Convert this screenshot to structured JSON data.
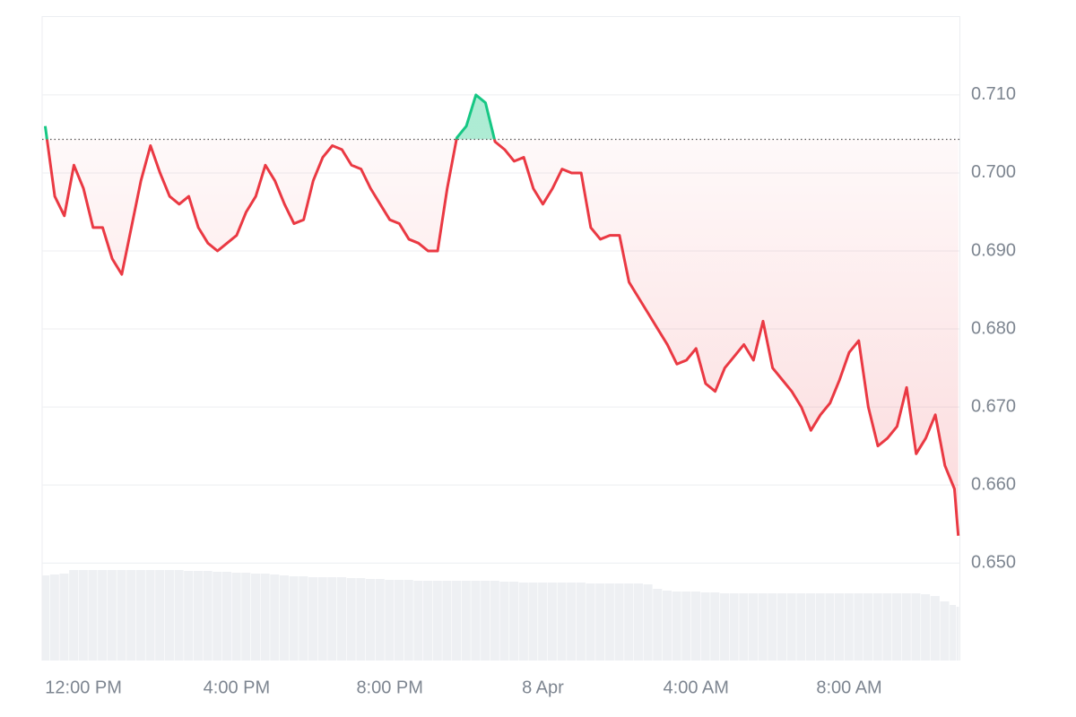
{
  "chart_data": {
    "type": "line",
    "x": [
      -1,
      -0.75,
      -0.5,
      -0.25,
      0,
      0.25,
      0.5,
      0.75,
      1,
      1.25,
      1.5,
      1.75,
      2,
      2.25,
      2.5,
      2.75,
      3,
      3.25,
      3.5,
      3.75,
      4,
      4.25,
      4.5,
      4.75,
      5,
      5.25,
      5.5,
      5.75,
      6,
      6.25,
      6.5,
      6.75,
      7,
      7.25,
      7.5,
      7.75,
      8,
      8.25,
      8.5,
      8.75,
      9,
      9.25,
      9.5,
      9.75,
      10,
      10.25,
      10.5,
      10.75,
      11,
      11.25,
      11.5,
      11.75,
      12,
      12.25,
      12.5,
      12.75,
      13,
      13.25,
      13.5,
      13.75,
      14,
      14.25,
      14.5,
      14.75,
      15,
      15.25,
      15.5,
      15.75,
      16,
      16.25,
      16.5,
      16.75,
      17,
      17.25,
      17.5,
      17.75,
      18,
      18.25,
      18.5,
      18.75,
      19,
      19.25,
      19.5,
      19.75,
      20,
      20.25,
      20.5,
      20.75,
      21,
      21.25,
      21.5,
      21.75,
      22,
      22.25,
      22.5,
      22.75,
      22.85
    ],
    "values": [
      0.706,
      0.697,
      0.6945,
      0.701,
      0.698,
      0.693,
      0.693,
      0.689,
      0.687,
      0.693,
      0.699,
      0.7035,
      0.7,
      0.697,
      0.696,
      0.697,
      0.693,
      0.691,
      0.69,
      0.691,
      0.692,
      0.695,
      0.697,
      0.701,
      0.699,
      0.696,
      0.6935,
      0.694,
      0.699,
      0.702,
      0.7035,
      0.703,
      0.701,
      0.7005,
      0.698,
      0.696,
      0.694,
      0.6935,
      0.6915,
      0.691,
      0.69,
      0.69,
      0.698,
      0.7045,
      0.706,
      0.71,
      0.709,
      0.704,
      0.703,
      0.7015,
      0.702,
      0.698,
      0.696,
      0.698,
      0.7005,
      0.7,
      0.7,
      0.693,
      0.6915,
      0.692,
      0.692,
      0.686,
      0.684,
      0.682,
      0.68,
      0.678,
      0.6755,
      0.676,
      0.6775,
      0.673,
      0.672,
      0.675,
      0.6765,
      0.678,
      0.676,
      0.681,
      0.675,
      0.6735,
      0.672,
      0.67,
      0.667,
      0.669,
      0.6705,
      0.6735,
      0.677,
      0.6785,
      0.67,
      0.665,
      0.666,
      0.6675,
      0.6725,
      0.664,
      0.666,
      0.669,
      0.6625,
      0.6595,
      0.6535
    ],
    "volume": [
      95,
      96,
      97,
      101,
      101,
      101,
      101,
      101,
      101,
      101,
      101,
      101,
      101,
      101,
      101,
      100,
      100,
      100,
      99,
      99,
      98,
      98,
      97,
      97,
      96,
      95,
      94,
      94,
      93,
      93,
      93,
      93,
      92,
      92,
      91,
      91,
      90,
      90,
      90,
      89,
      89,
      89,
      89,
      89,
      89,
      89,
      89,
      89,
      88,
      88,
      87,
      87,
      87,
      87,
      87,
      87,
      87,
      86,
      86,
      86,
      86,
      86,
      86,
      85,
      80,
      78,
      77,
      77,
      77,
      76,
      76,
      75,
      75,
      75,
      75,
      75,
      75,
      75,
      75,
      75,
      75,
      75,
      75,
      75,
      75,
      75,
      75,
      75,
      75,
      75,
      75,
      75,
      74,
      72,
      66,
      62,
      60
    ],
    "volume_lim": [
      0,
      101
    ],
    "volume_color": "#eef0f3",
    "reference": 0.7043,
    "up_color": "#16c784",
    "down_color": "#ea3943",
    "xlim": [
      -1.08,
      22.88
    ],
    "xticks": [
      {
        "value": 0,
        "label": "12:00 PM"
      },
      {
        "value": 4,
        "label": "4:00 PM"
      },
      {
        "value": 8,
        "label": "8:00 PM"
      },
      {
        "value": 12,
        "label": "8 Apr"
      },
      {
        "value": 16,
        "label": "4:00 AM"
      },
      {
        "value": 20,
        "label": "8:00 AM"
      }
    ],
    "ylim": [
      0.6375,
      0.7201
    ],
    "yticks": [
      {
        "value": 0.65,
        "label": "0.650"
      },
      {
        "value": 0.66,
        "label": "0.660"
      },
      {
        "value": 0.67,
        "label": "0.670"
      },
      {
        "value": 0.68,
        "label": "0.680"
      },
      {
        "value": 0.69,
        "label": "0.690"
      },
      {
        "value": 0.7,
        "label": "0.700"
      },
      {
        "value": 0.71,
        "label": "0.710"
      }
    ],
    "grid": true
  }
}
